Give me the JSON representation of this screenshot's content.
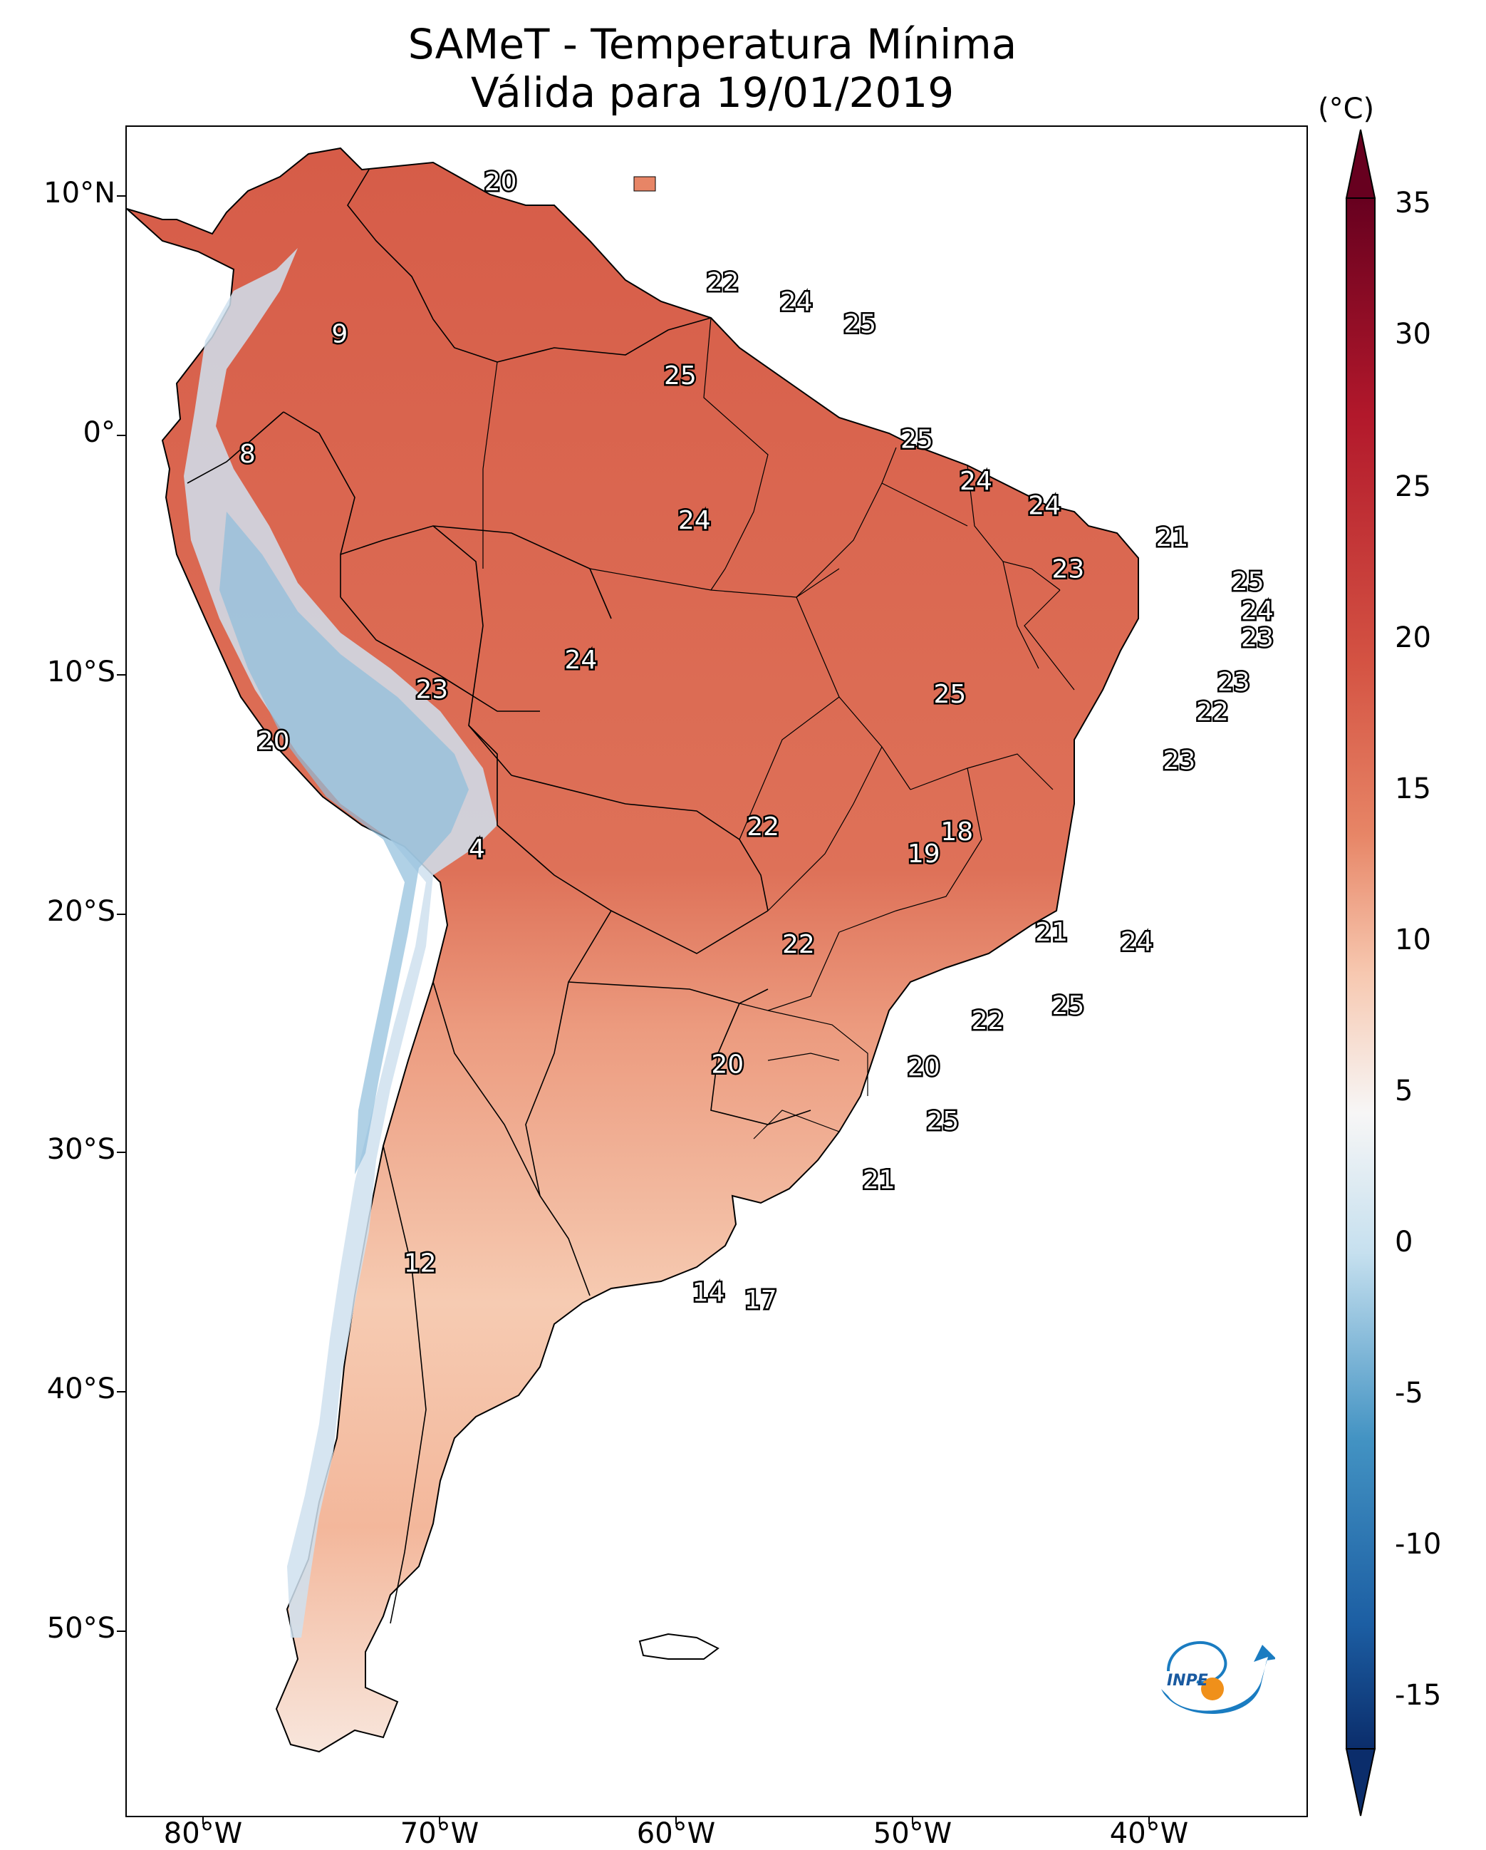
{
  "title": "SAMeT - Temperatura Mínima",
  "subtitle": "Válida para 19/01/2019",
  "axes": {
    "lat_labels": [
      "10°N",
      "0°",
      "10°S",
      "20°S",
      "30°S",
      "40°S",
      "50°S"
    ],
    "lon_labels": [
      "80°W",
      "70°W",
      "60°W",
      "50°W",
      "40°W"
    ]
  },
  "colorbar": {
    "unit": "(°C)",
    "labels": [
      "35",
      "30",
      "25",
      "20",
      "15",
      "10",
      "5",
      "0",
      "-5",
      "-10",
      "-15"
    ],
    "range": [
      -15,
      35
    ],
    "colors": {
      "min": "#0b2d6b",
      "neg": "#4393c3",
      "zero_low": "#c6e0ef",
      "ten": "#f7f6f6",
      "fifteen": "#f7c8b0",
      "twenty": "#e78566",
      "twentyfive": "#d45343",
      "thirty": "#b2182b",
      "max": "#67001f"
    }
  },
  "logo_text": "INPE",
  "chart_data": {
    "type": "map",
    "title": "SAMeT - Temperatura Mínima",
    "subtitle": "Válida para 19/01/2019",
    "unit": "°C",
    "lon_range": [
      -83,
      -33
    ],
    "lat_range": [
      -56,
      13
    ],
    "colorbar_range": [
      -15,
      35
    ],
    "station_values": [
      {
        "value": "20",
        "lon": -67.2,
        "lat": 10.7
      },
      {
        "value": "22",
        "lon": -57.8,
        "lat": 6.6
      },
      {
        "value": "24",
        "lon": -54.7,
        "lat": 5.8
      },
      {
        "value": "25",
        "lon": -52.0,
        "lat": 4.9
      },
      {
        "value": "9",
        "lon": -74.0,
        "lat": 4.5
      },
      {
        "value": "25",
        "lon": -59.6,
        "lat": 2.8
      },
      {
        "value": "8",
        "lon": -77.9,
        "lat": -0.4
      },
      {
        "value": "25",
        "lon": -49.6,
        "lat": 0.2
      },
      {
        "value": "24",
        "lon": -47.1,
        "lat": -1.5
      },
      {
        "value": "24",
        "lon": -44.2,
        "lat": -2.5
      },
      {
        "value": "24",
        "lon": -59.0,
        "lat": -3.1
      },
      {
        "value": "21",
        "lon": -38.8,
        "lat": -3.8
      },
      {
        "value": "23",
        "lon": -43.2,
        "lat": -5.1
      },
      {
        "value": "25",
        "lon": -35.6,
        "lat": -5.6
      },
      {
        "value": "24",
        "lon": -35.2,
        "lat": -6.8
      },
      {
        "value": "23",
        "lon": -35.2,
        "lat": -7.9
      },
      {
        "value": "24",
        "lon": -63.8,
        "lat": -8.8
      },
      {
        "value": "23",
        "lon": -36.2,
        "lat": -9.7
      },
      {
        "value": "23",
        "lon": -70.1,
        "lat": -10.0
      },
      {
        "value": "25",
        "lon": -48.2,
        "lat": -10.2
      },
      {
        "value": "22",
        "lon": -37.1,
        "lat": -10.9
      },
      {
        "value": "20",
        "lon": -76.8,
        "lat": -12.1
      },
      {
        "value": "23",
        "lon": -38.5,
        "lat": -12.9
      },
      {
        "value": "22",
        "lon": -56.1,
        "lat": -15.6
      },
      {
        "value": "18",
        "lon": -47.9,
        "lat": -15.8
      },
      {
        "value": "19",
        "lon": -49.3,
        "lat": -16.7
      },
      {
        "value": "4",
        "lon": -68.2,
        "lat": -16.5
      },
      {
        "value": "21",
        "lon": -43.9,
        "lat": -19.9
      },
      {
        "value": "24",
        "lon": -40.3,
        "lat": -20.3
      },
      {
        "value": "22",
        "lon": -54.6,
        "lat": -20.4
      },
      {
        "value": "25",
        "lon": -43.2,
        "lat": -22.9
      },
      {
        "value": "22",
        "lon": -46.6,
        "lat": -23.5
      },
      {
        "value": "20",
        "lon": -57.6,
        "lat": -25.3
      },
      {
        "value": "20",
        "lon": -49.3,
        "lat": -25.4
      },
      {
        "value": "25",
        "lon": -48.5,
        "lat": -27.6
      },
      {
        "value": "21",
        "lon": -51.2,
        "lat": -30.0
      },
      {
        "value": "12",
        "lon": -70.6,
        "lat": -33.4
      },
      {
        "value": "14",
        "lon": -58.4,
        "lat": -34.6
      },
      {
        "value": "17",
        "lon": -56.2,
        "lat": -34.9
      }
    ]
  }
}
